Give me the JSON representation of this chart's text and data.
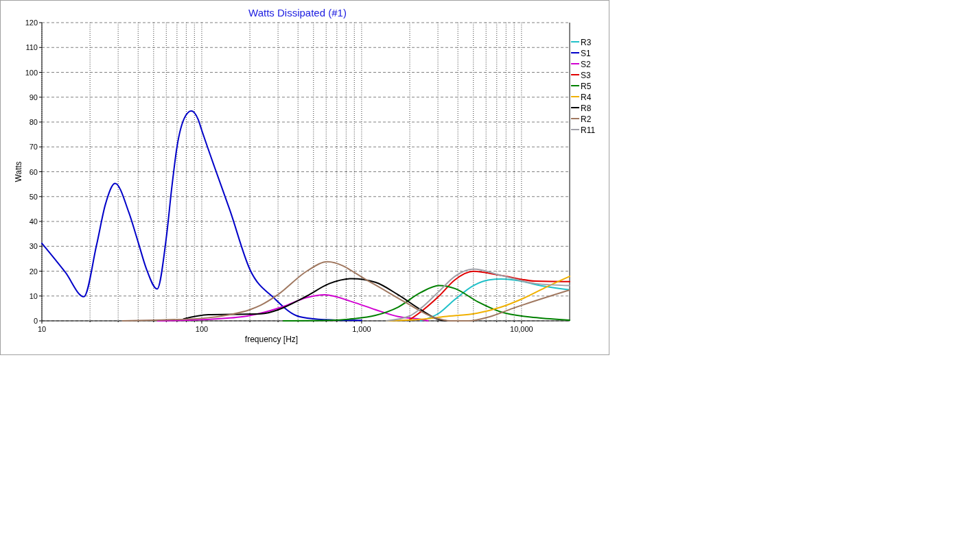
{
  "chart_data": {
    "type": "line",
    "title": "Watts Dissipated (#1)",
    "xlabel": "frequency [Hz]",
    "ylabel": "Watts",
    "log": "x",
    "xlim": [
      10,
      20000
    ],
    "ylim": [
      0,
      120
    ],
    "xticks": [
      {
        "value": 10,
        "label": "10"
      },
      {
        "value": 20,
        "label": null
      },
      {
        "value": 30,
        "label": null
      },
      {
        "value": 40,
        "label": null
      },
      {
        "value": 50,
        "label": null
      },
      {
        "value": 60,
        "label": null
      },
      {
        "value": 70,
        "label": null
      },
      {
        "value": 80,
        "label": null
      },
      {
        "value": 90,
        "label": null
      },
      {
        "value": 100,
        "label": "100"
      },
      {
        "value": 200,
        "label": null
      },
      {
        "value": 300,
        "label": null
      },
      {
        "value": 400,
        "label": null
      },
      {
        "value": 500,
        "label": null
      },
      {
        "value": 600,
        "label": null
      },
      {
        "value": 700,
        "label": null
      },
      {
        "value": 800,
        "label": null
      },
      {
        "value": 900,
        "label": null
      },
      {
        "value": 1000,
        "label": "1,000"
      },
      {
        "value": 2000,
        "label": null
      },
      {
        "value": 3000,
        "label": null
      },
      {
        "value": 4000,
        "label": null
      },
      {
        "value": 5000,
        "label": null
      },
      {
        "value": 6000,
        "label": null
      },
      {
        "value": 7000,
        "label": null
      },
      {
        "value": 8000,
        "label": null
      },
      {
        "value": 9000,
        "label": null
      },
      {
        "value": 10000,
        "label": "10,000"
      }
    ],
    "yticks": [
      0,
      10,
      20,
      30,
      40,
      50,
      60,
      70,
      80,
      90,
      100,
      110,
      120
    ],
    "grid": true,
    "legend": "right",
    "line_style": "solid",
    "marker": "none",
    "series": [
      {
        "name": "R3",
        "color": "#20c0c8",
        "x": [
          2340,
          3050,
          3830,
          5000,
          6280,
          7430,
          8800,
          10300,
          12200,
          20000
        ],
        "values": [
          0,
          3.1,
          8.6,
          14.2,
          16.5,
          16.8,
          16.5,
          15.8,
          14.6,
          12.5
        ]
      },
      {
        "name": "S1",
        "color": "#0000c8",
        "x": [
          10,
          12,
          14,
          18.3,
          22,
          25,
          28.7,
          35,
          40,
          45,
          52.6,
          60,
          65,
          70,
          78,
          86,
          95,
          100,
          120,
          150,
          200,
          285,
          394,
          500,
          700,
          1000
        ],
        "values": [
          31.2,
          25,
          19.6,
          9.7,
          30.6,
          47,
          55.3,
          43.6,
          31.7,
          21,
          12.8,
          33.4,
          53.8,
          70,
          81.7,
          84.5,
          81,
          76.7,
          62,
          44.5,
          20.7,
          9,
          2,
          0.8,
          0.3,
          0.2
        ]
      },
      {
        "name": "S2",
        "color": "#d000d0",
        "x": [
          53,
          100,
          183,
          234,
          324,
          454,
          590,
          870,
          1220,
          1690,
          2340,
          2600
        ],
        "values": [
          0,
          0.5,
          1.7,
          3.1,
          5.8,
          9.4,
          10.5,
          7.7,
          4.5,
          1.7,
          0.6,
          0
        ]
      },
      {
        "name": "S3",
        "color": "#e00000",
        "x": [
          2000,
          2340,
          3050,
          3830,
          5000,
          7430,
          12200,
          20000
        ],
        "values": [
          0.5,
          3.6,
          10,
          16.5,
          19.9,
          18.3,
          16,
          15.8
        ]
      },
      {
        "name": "R5",
        "color": "#008000",
        "x": [
          324,
          628,
          870,
          1220,
          1690,
          2340,
          3050,
          3830,
          5320,
          7430,
          12400,
          20000
        ],
        "values": [
          0,
          0.2,
          0.8,
          2.2,
          5.5,
          11.4,
          14.2,
          13,
          7.7,
          3.6,
          1.3,
          0.3
        ]
      },
      {
        "name": "R4",
        "color": "#f0b000",
        "x": [
          1430,
          2340,
          3300,
          5300,
          7430,
          10300,
          14400,
          20000
        ],
        "values": [
          0,
          0.6,
          1.7,
          3.1,
          5.5,
          9.1,
          13.7,
          17.9
        ]
      },
      {
        "name": "R8",
        "color": "#000000",
        "x": [
          77,
          110,
          155,
          234,
          299,
          324,
          454,
          628,
          870,
          1220,
          1690,
          2340,
          3050,
          3400
        ],
        "values": [
          0.8,
          2.5,
          2.6,
          2.8,
          4.4,
          5.3,
          10,
          15,
          17,
          15.5,
          10.5,
          4.5,
          0.5,
          0
        ]
      },
      {
        "name": "R2",
        "color": "#a07860",
        "x": [
          32,
          50,
          100,
          150,
          200,
          234,
          299,
          454,
          610,
          1140,
          1850,
          2860,
          3600,
          4660,
          6280,
          8800,
          20000
        ],
        "values": [
          0,
          0.3,
          1,
          2.5,
          4.5,
          6.3,
          10.5,
          20,
          23.8,
          15.5,
          7.7,
          1.3,
          0,
          0,
          1.6,
          5,
          12.4
        ]
      },
      {
        "name": "R11",
        "color": "#a0a0a8",
        "x": [
          1430,
          2000,
          2340,
          3050,
          3830,
          5000,
          7430,
          12200,
          20000
        ],
        "values": [
          0,
          2,
          5,
          11.9,
          17.9,
          20.8,
          18.3,
          15,
          14.2
        ]
      }
    ]
  }
}
